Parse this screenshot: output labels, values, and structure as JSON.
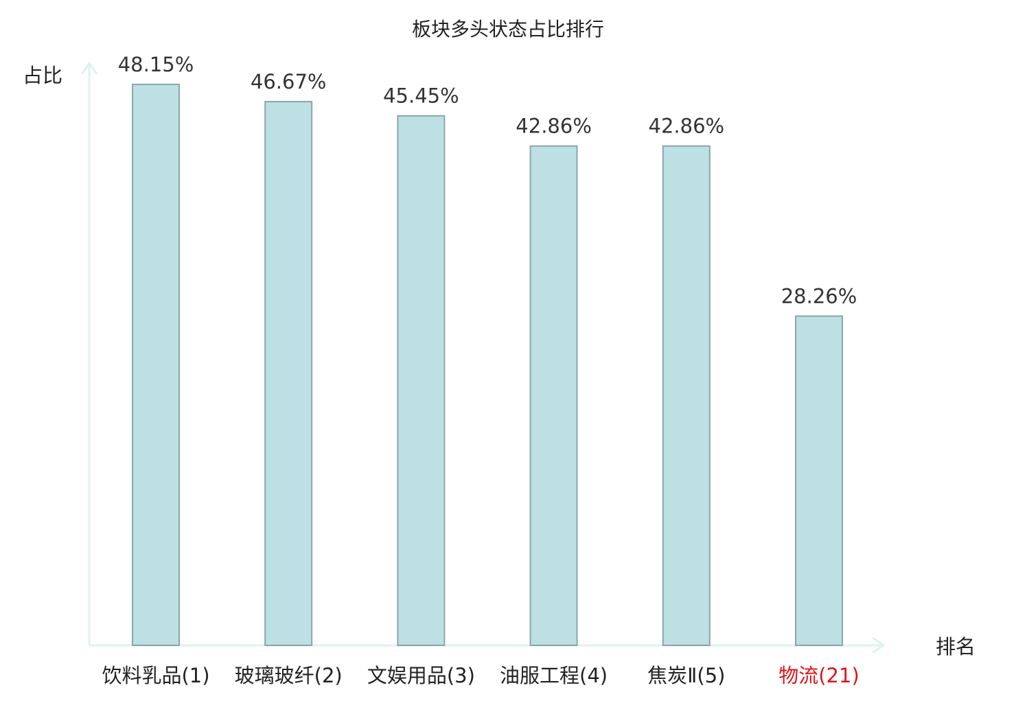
{
  "chart_data": {
    "type": "bar",
    "title": "板块多头状态占比排行",
    "ylabel": "占比",
    "xlabel": "排名",
    "categories": [
      "饮料乳品(1)",
      "玻璃玻纤(2)",
      "文娱用品(3)",
      "油服工程(4)",
      "焦炭Ⅱ(5)",
      "物流(21)"
    ],
    "values": [
      48.15,
      46.67,
      45.45,
      42.86,
      42.86,
      28.26
    ],
    "value_labels": [
      "48.15%",
      "46.67%",
      "45.45%",
      "42.86%",
      "42.86%",
      "28.26%"
    ],
    "ylim": [
      0,
      50
    ],
    "grid": false,
    "highlight_index": 5,
    "colors": {
      "bar_fill": "#bce0e3",
      "bar_stroke": "#8aa6a8",
      "axis": "#dff2ef",
      "label_default": "#222222",
      "label_highlight": "#e0151b",
      "value_text": "#333333"
    }
  }
}
